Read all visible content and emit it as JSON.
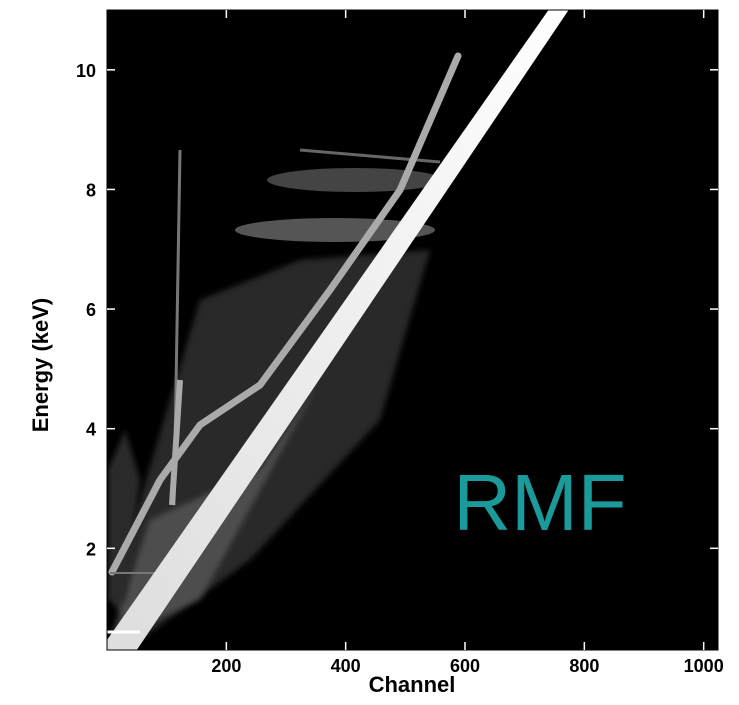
{
  "chart_data": {
    "type": "image",
    "xlabel": "Channel",
    "ylabel": "Energy (keV)",
    "annotation": "RMF",
    "annotation_color": "#1a9a9a",
    "xlim": [
      0,
      1024
    ],
    "ylim": [
      0.3,
      11
    ],
    "xticks": [
      200,
      400,
      600,
      800,
      1000
    ],
    "yticks": [
      2,
      4,
      6,
      8,
      10
    ]
  }
}
